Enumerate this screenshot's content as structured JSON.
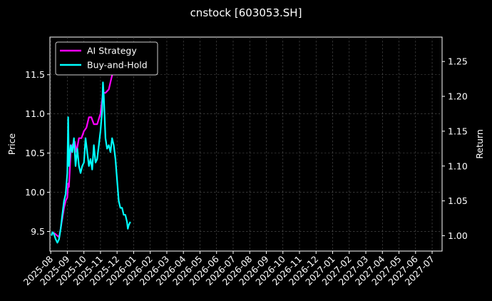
{
  "chart_data": {
    "type": "line",
    "title": "cnstock [603053.SH]",
    "xlabel": "",
    "ylabel_left": "Price",
    "ylabel_right": "Return",
    "x_tick_labels": [
      "2025-08",
      "2025-09",
      "2025-10",
      "2025-11",
      "2025-12",
      "2026-01",
      "2026-02",
      "2026-03",
      "2026-04",
      "2026-05",
      "2026-06",
      "2026-07",
      "2026-08",
      "2026-09",
      "2026-10",
      "2026-11",
      "2026-12",
      "2027-01",
      "2027-02",
      "2027-03",
      "2027-04",
      "2027-05",
      "2027-06",
      "2027-07"
    ],
    "y_left_ticks": [
      9.5,
      10.0,
      10.5,
      11.0,
      11.5
    ],
    "y_left_tick_labels": [
      "9.5",
      "10.0",
      "10.5",
      "11.0",
      "11.5"
    ],
    "y_right_ticks": [
      1.0,
      1.05,
      1.1,
      1.15,
      1.2,
      1.25
    ],
    "y_right_tick_labels": [
      "1.00",
      "1.05",
      "1.10",
      "1.15",
      "1.20",
      "1.25"
    ],
    "ylim_left": [
      9.25,
      11.98
    ],
    "ylim_right": [
      0.978,
      1.285
    ],
    "xlim_months": [
      -0.05,
      23.6
    ],
    "grid": true,
    "legend_position": "top-left",
    "series": [
      {
        "name": "AI Strategy",
        "axis": "right",
        "color": "#ff00ff",
        "points": [
          [
            0.1,
            1.005
          ],
          [
            0.25,
            1.003
          ],
          [
            0.4,
            1.0
          ],
          [
            0.5,
            0.998
          ],
          [
            0.6,
            1.01
          ],
          [
            0.7,
            1.025
          ],
          [
            0.8,
            1.04
          ],
          [
            0.9,
            1.05
          ],
          [
            1.0,
            1.055
          ],
          [
            1.05,
            1.075
          ],
          [
            1.1,
            1.07
          ],
          [
            1.2,
            1.12
          ],
          [
            1.3,
            1.13
          ],
          [
            1.45,
            1.135
          ],
          [
            1.55,
            1.12
          ],
          [
            1.7,
            1.14
          ],
          [
            1.85,
            1.14
          ],
          [
            2.0,
            1.15
          ],
          [
            2.15,
            1.155
          ],
          [
            2.3,
            1.17
          ],
          [
            2.45,
            1.17
          ],
          [
            2.6,
            1.16
          ],
          [
            2.8,
            1.16
          ],
          [
            3.0,
            1.175
          ],
          [
            3.15,
            1.205
          ],
          [
            3.3,
            1.205
          ],
          [
            3.5,
            1.21
          ],
          [
            3.65,
            1.225
          ],
          [
            3.8,
            1.24
          ],
          [
            3.95,
            1.25
          ],
          [
            4.05,
            1.262
          ]
        ]
      },
      {
        "name": "Buy-and-Hold",
        "axis": "right",
        "color": "#00ffff",
        "points": [
          [
            0.05,
            1.0
          ],
          [
            0.1,
            1.005
          ],
          [
            0.2,
            1.002
          ],
          [
            0.3,
            0.995
          ],
          [
            0.4,
            0.99
          ],
          [
            0.5,
            0.995
          ],
          [
            0.6,
            1.01
          ],
          [
            0.7,
            1.03
          ],
          [
            0.8,
            1.05
          ],
          [
            0.9,
            1.06
          ],
          [
            1.0,
            1.09
          ],
          [
            1.05,
            1.17
          ],
          [
            1.1,
            1.1
          ],
          [
            1.2,
            1.13
          ],
          [
            1.3,
            1.12
          ],
          [
            1.4,
            1.14
          ],
          [
            1.5,
            1.1
          ],
          [
            1.6,
            1.125
          ],
          [
            1.7,
            1.1
          ],
          [
            1.8,
            1.09
          ],
          [
            1.9,
            1.1
          ],
          [
            2.0,
            1.105
          ],
          [
            2.1,
            1.14
          ],
          [
            2.2,
            1.12
          ],
          [
            2.3,
            1.1
          ],
          [
            2.4,
            1.11
          ],
          [
            2.5,
            1.095
          ],
          [
            2.6,
            1.13
          ],
          [
            2.7,
            1.105
          ],
          [
            2.8,
            1.11
          ],
          [
            2.9,
            1.13
          ],
          [
            3.0,
            1.15
          ],
          [
            3.1,
            1.18
          ],
          [
            3.15,
            1.22
          ],
          [
            3.2,
            1.2
          ],
          [
            3.3,
            1.14
          ],
          [
            3.4,
            1.125
          ],
          [
            3.5,
            1.13
          ],
          [
            3.6,
            1.12
          ],
          [
            3.7,
            1.14
          ],
          [
            3.8,
            1.13
          ],
          [
            3.9,
            1.11
          ],
          [
            4.0,
            1.08
          ],
          [
            4.1,
            1.05
          ],
          [
            4.2,
            1.04
          ],
          [
            4.3,
            1.04
          ],
          [
            4.4,
            1.03
          ],
          [
            4.5,
            1.03
          ],
          [
            4.6,
            1.02
          ],
          [
            4.65,
            1.01
          ],
          [
            4.7,
            1.015
          ],
          [
            4.8,
            1.02
          ]
        ]
      }
    ]
  }
}
